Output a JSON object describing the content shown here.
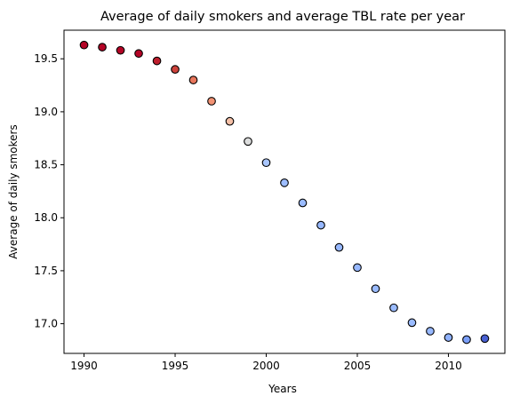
{
  "chart_data": {
    "type": "scatter",
    "title": "Average of daily smokers and average TBL rate per year",
    "xlabel": "Years",
    "ylabel": "Average of daily smokers",
    "xlim": [
      1988.9,
      2013.1
    ],
    "ylim": [
      16.72,
      19.77
    ],
    "grid": false,
    "x_ticks": [
      1990,
      1995,
      2000,
      2005,
      2010
    ],
    "x_tick_labels": [
      "1990",
      "1995",
      "2000",
      "2005",
      "2010"
    ],
    "y_ticks": [
      17.0,
      17.5,
      18.0,
      18.5,
      19.0,
      19.5
    ],
    "y_tick_labels": [
      "17.0",
      "17.5",
      "18.0",
      "18.5",
      "19.0",
      "19.5"
    ],
    "points": [
      {
        "x": 1990,
        "y": 19.63,
        "color": "#b40426"
      },
      {
        "x": 1991,
        "y": 19.61,
        "color": "#b40426"
      },
      {
        "x": 1992,
        "y": 19.58,
        "color": "#b40426"
      },
      {
        "x": 1993,
        "y": 19.55,
        "color": "#b40426"
      },
      {
        "x": 1994,
        "y": 19.48,
        "color": "#be1e2d"
      },
      {
        "x": 1995,
        "y": 19.4,
        "color": "#cd423b"
      },
      {
        "x": 1996,
        "y": 19.3,
        "color": "#e8765c"
      },
      {
        "x": 1997,
        "y": 19.1,
        "color": "#f29274"
      },
      {
        "x": 1998,
        "y": 18.91,
        "color": "#f5c0a7"
      },
      {
        "x": 1999,
        "y": 18.72,
        "color": "#dcdddd"
      },
      {
        "x": 2000,
        "y": 18.52,
        "color": "#a9c6fd"
      },
      {
        "x": 2001,
        "y": 18.33,
        "color": "#9dbdff"
      },
      {
        "x": 2002,
        "y": 18.14,
        "color": "#9abbff"
      },
      {
        "x": 2003,
        "y": 17.93,
        "color": "#97b8ff"
      },
      {
        "x": 2004,
        "y": 17.72,
        "color": "#97b8ff"
      },
      {
        "x": 2005,
        "y": 17.53,
        "color": "#97b8ff"
      },
      {
        "x": 2006,
        "y": 17.33,
        "color": "#9abbff"
      },
      {
        "x": 2007,
        "y": 17.15,
        "color": "#9abbff"
      },
      {
        "x": 2008,
        "y": 17.01,
        "color": "#9abbff"
      },
      {
        "x": 2009,
        "y": 16.93,
        "color": "#97b8ff"
      },
      {
        "x": 2010,
        "y": 16.87,
        "color": "#90b2fe"
      },
      {
        "x": 2011,
        "y": 16.85,
        "color": "#7b9ff9"
      },
      {
        "x": 2012,
        "y": 16.86,
        "color": "#4961d2"
      }
    ]
  }
}
